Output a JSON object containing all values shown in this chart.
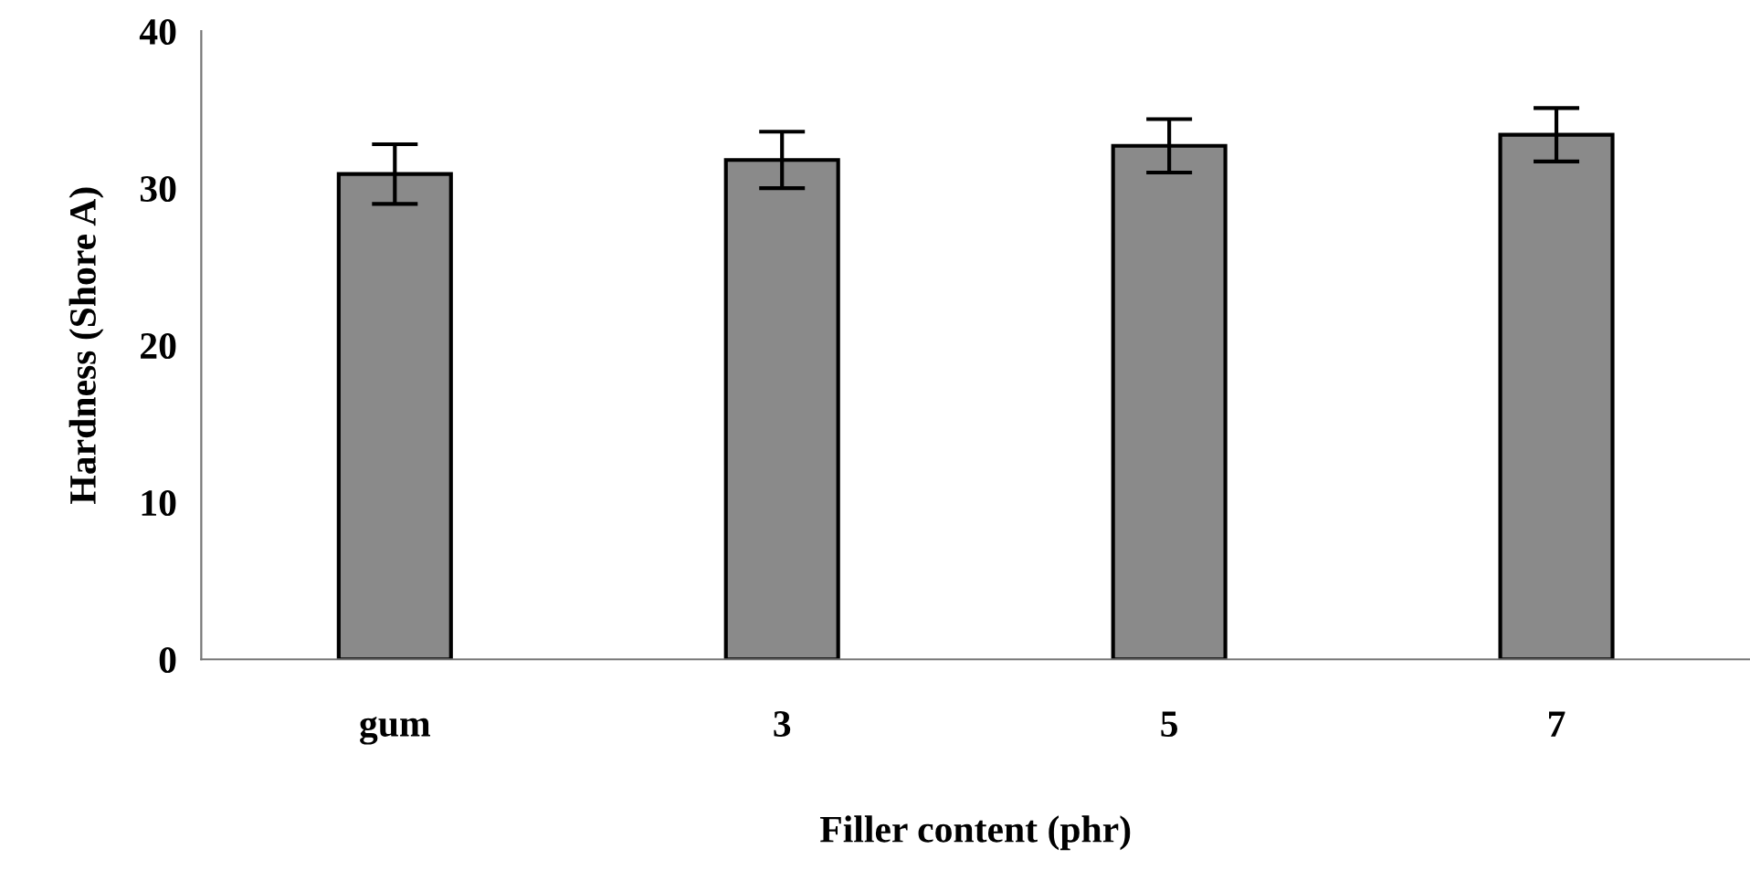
{
  "chart_data": {
    "type": "bar",
    "xlabel": "Filler content (phr)",
    "ylabel": "Hardness (Shore A)",
    "categories": [
      "gum",
      "3",
      "5",
      "7"
    ],
    "values": [
      30.9,
      31.8,
      32.7,
      33.4
    ],
    "errors": [
      1.9,
      1.8,
      1.7,
      1.7
    ],
    "color": "#8a8a8a",
    "ylim": [
      0,
      40
    ],
    "yticks": [
      0,
      10,
      20,
      30,
      40
    ],
    "grid": false,
    "legend": false
  }
}
